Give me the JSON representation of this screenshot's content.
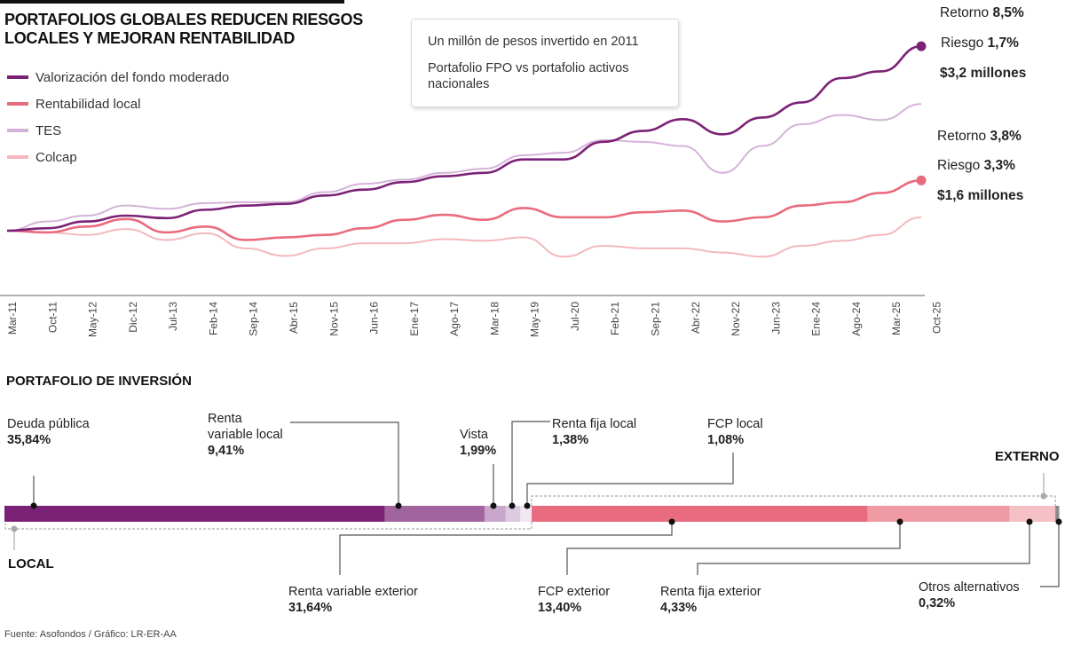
{
  "title_line1": "PORTAFOLIOS GLOBALES REDUCEN RIESGOS",
  "title_line2": "LOCALES Y MEJORAN RENTABILIDAD",
  "callout": {
    "line1": "Un millón de pesos invertido en 2011",
    "line2": "Portafolio FPO vs portafolio activos nacionales"
  },
  "annotations": {
    "fpo": {
      "retorno_label": "Retorno",
      "retorno": "8,5%",
      "riesgo_label": "Riesgo",
      "riesgo": "1,7%",
      "valor": "$3,2 millones"
    },
    "local": {
      "retorno_label": "Retorno",
      "retorno": "3,8%",
      "riesgo_label": "Riesgo",
      "riesgo": "3,3%",
      "valor": "$1,6 millones"
    }
  },
  "chart_data": [
    {
      "type": "line",
      "title": "",
      "xlabel": "",
      "ylabel": "",
      "grid": false,
      "legend_placement": "top-left",
      "x": [
        "Mar-11",
        "Oct-11",
        "May-12",
        "Dic-12",
        "Jul-13",
        "Feb-14",
        "Sep-14",
        "Abr-15",
        "Nov-15",
        "Jun-16",
        "Ene-17",
        "Ago-17",
        "Mar-18",
        "May-19",
        "Jul-20",
        "Feb-21",
        "Sep-21",
        "Abr-22",
        "Nov-22",
        "Jun-23",
        "Ene-24",
        "Ago-24",
        "Mar-25",
        "Oct-25"
      ],
      "series": [
        {
          "name": "Valorización del fondo moderado",
          "color": "#7b2277",
          "values": [
            1,
            1.03,
            1.11,
            1.18,
            1.15,
            1.25,
            1.3,
            1.32,
            1.42,
            1.49,
            1.58,
            1.65,
            1.69,
            1.85,
            1.85,
            2.06,
            2.19,
            2.33,
            2.15,
            2.35,
            2.53,
            2.82,
            2.9,
            3.2
          ]
        },
        {
          "name": "Rentabilidad local",
          "color": "#e96b7e",
          "values": [
            1,
            0.98,
            1.05,
            1.14,
            0.98,
            1.05,
            0.89,
            0.92,
            0.95,
            1.03,
            1.13,
            1.19,
            1.13,
            1.27,
            1.16,
            1.16,
            1.22,
            1.24,
            1.11,
            1.16,
            1.3,
            1.34,
            1.45,
            1.6
          ]
        },
        {
          "name": "TES",
          "color": "#d4b3d8",
          "values": [
            1,
            1.11,
            1.18,
            1.3,
            1.26,
            1.33,
            1.34,
            1.34,
            1.46,
            1.56,
            1.61,
            1.69,
            1.74,
            1.9,
            1.93,
            2.08,
            2.06,
            2.01,
            1.69,
            2.01,
            2.27,
            2.38,
            2.32,
            2.51
          ]
        },
        {
          "name": "Colcap",
          "color": "#f3b8bd",
          "values": [
            1,
            0.98,
            0.95,
            1.02,
            0.89,
            0.97,
            0.79,
            0.7,
            0.79,
            0.85,
            0.85,
            0.9,
            0.88,
            0.92,
            0.69,
            0.82,
            0.79,
            0.79,
            0.74,
            0.69,
            0.82,
            0.88,
            0.95,
            1.16
          ]
        }
      ]
    },
    {
      "type": "bar",
      "orientation": "horizontal-stacked",
      "title": "PORTAFOLIO DE INVERSIÓN",
      "groups": [
        {
          "name": "LOCAL"
        },
        {
          "name": "EXTERNO"
        }
      ],
      "segments": [
        {
          "name": "Deuda pública",
          "label": "35,84%",
          "value": 35.84,
          "group": "LOCAL",
          "color": "#7b2277"
        },
        {
          "name": "Renta variable local",
          "name_line1": "Renta",
          "name_line2": "variable local",
          "label": "9,41%",
          "value": 9.41,
          "group": "LOCAL",
          "color": "#a2649f"
        },
        {
          "name": "Vista",
          "label": "1,99%",
          "value": 1.99,
          "group": "LOCAL",
          "color": "#c9a6cb"
        },
        {
          "name": "Renta fija local",
          "label": "1,38%",
          "value": 1.38,
          "group": "LOCAL",
          "color": "#dccbe0"
        },
        {
          "name": "FCP local",
          "label": "1,08%",
          "value": 1.08,
          "group": "LOCAL",
          "color": "#f1e7f1"
        },
        {
          "name": "Renta variable exterior",
          "label": "31,64%",
          "value": 31.64,
          "group": "EXTERNO",
          "color": "#e96b7e"
        },
        {
          "name": "FCP exterior",
          "label": "13,40%",
          "value": 13.4,
          "group": "EXTERNO",
          "color": "#f09aa3"
        },
        {
          "name": "Renta fija exterior",
          "label": "4,33%",
          "value": 4.33,
          "group": "EXTERNO",
          "color": "#f6c1c6"
        },
        {
          "name": "Otros alternativos",
          "label": "0,32%",
          "value": 0.32,
          "group": "EXTERNO",
          "color": "#8a8a8a"
        }
      ]
    }
  ],
  "source": "Fuente: Asofondos / Gráfico: LR-ER-AA"
}
